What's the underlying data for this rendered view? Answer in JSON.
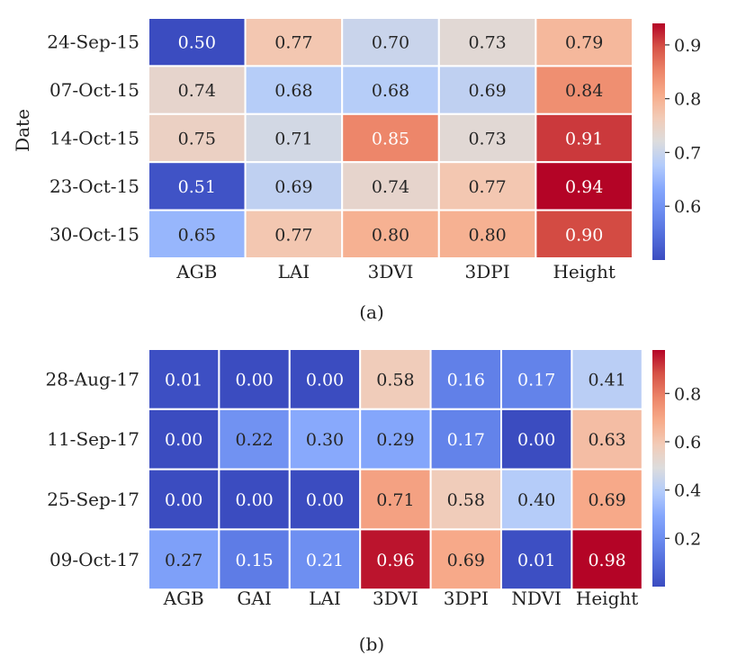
{
  "chart_data": [
    {
      "type": "heatmap",
      "panel_label": "(a)",
      "ylabel": "Date",
      "xlabel": "",
      "columns": [
        "AGB",
        "LAI",
        "3DVI",
        "3DPI",
        "Height"
      ],
      "rows": [
        "24-Sep-15",
        "07-Oct-15",
        "14-Oct-15",
        "23-Oct-15",
        "30-Oct-15"
      ],
      "values": [
        [
          0.5,
          0.77,
          0.7,
          0.73,
          0.79
        ],
        [
          0.74,
          0.68,
          0.68,
          0.69,
          0.84
        ],
        [
          0.75,
          0.71,
          0.85,
          0.73,
          0.91
        ],
        [
          0.51,
          0.69,
          0.74,
          0.77,
          0.94
        ],
        [
          0.65,
          0.77,
          0.8,
          0.8,
          0.9
        ]
      ],
      "value_labels": [
        [
          "0.50",
          "0.77",
          "0.70",
          "0.73",
          "0.79"
        ],
        [
          "0.74",
          "0.68",
          "0.68",
          "0.69",
          "0.84"
        ],
        [
          "0.75",
          "0.71",
          "0.85",
          "0.73",
          "0.91"
        ],
        [
          "0.51",
          "0.69",
          "0.74",
          "0.77",
          "0.94"
        ],
        [
          "0.65",
          "0.77",
          "0.80",
          "0.80",
          "0.90"
        ]
      ],
      "colormap": "coolwarm",
      "color_range": [
        0.5,
        0.94
      ],
      "colorbar_ticks": [
        0.6,
        0.7,
        0.8,
        0.9
      ],
      "colorbar_tick_labels": [
        "0.6",
        "0.7",
        "0.8",
        "0.9"
      ]
    },
    {
      "type": "heatmap",
      "panel_label": "(b)",
      "ylabel": "",
      "xlabel": "",
      "columns": [
        "AGB",
        "GAI",
        "LAI",
        "3DVI",
        "3DPI",
        "NDVI",
        "Height"
      ],
      "rows": [
        "28-Aug-17",
        "11-Sep-17",
        "25-Sep-17",
        "09-Oct-17"
      ],
      "values": [
        [
          0.01,
          0.0,
          0.0,
          0.58,
          0.16,
          0.17,
          0.41
        ],
        [
          0.0,
          0.22,
          0.3,
          0.29,
          0.17,
          0.0,
          0.63
        ],
        [
          0.0,
          0.0,
          0.0,
          0.71,
          0.58,
          0.4,
          0.69
        ],
        [
          0.27,
          0.15,
          0.21,
          0.96,
          0.69,
          0.01,
          0.98
        ]
      ],
      "value_labels": [
        [
          "0.01",
          "0.00",
          "0.00",
          "0.58",
          "0.16",
          "0.17",
          "0.41"
        ],
        [
          "0.00",
          "0.22",
          "0.30",
          "0.29",
          "0.17",
          "0.00",
          "0.63"
        ],
        [
          "0.00",
          "0.00",
          "0.00",
          "0.71",
          "0.58",
          "0.40",
          "0.69"
        ],
        [
          "0.27",
          "0.15",
          "0.21",
          "0.96",
          "0.69",
          "0.01",
          "0.98"
        ]
      ],
      "colormap": "coolwarm",
      "color_range": [
        0.0,
        0.98
      ],
      "colorbar_ticks": [
        0.2,
        0.4,
        0.6,
        0.8
      ],
      "colorbar_tick_labels": [
        "0.2",
        "0.4",
        "0.6",
        "0.8"
      ]
    }
  ]
}
